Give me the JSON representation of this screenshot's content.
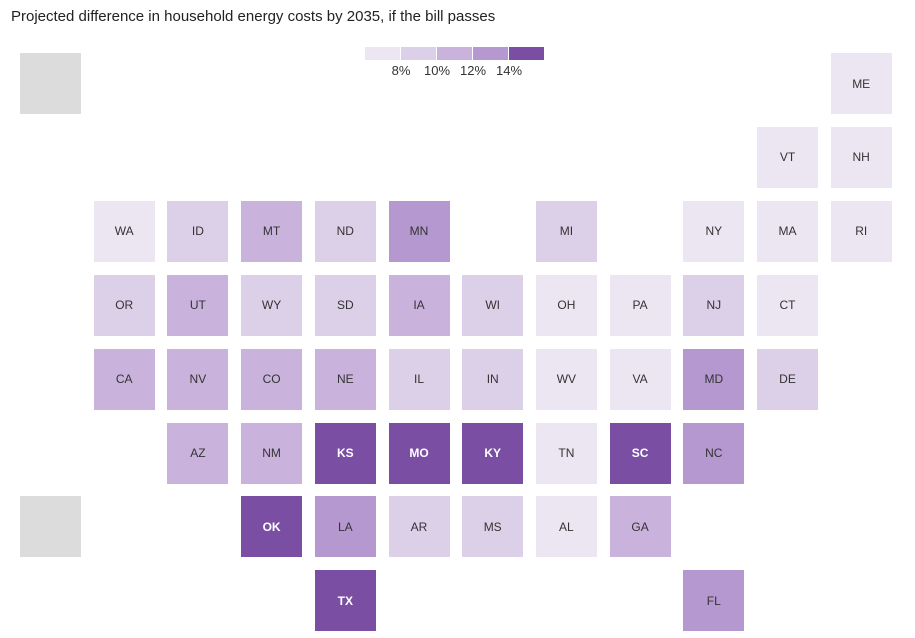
{
  "chart_data": {
    "type": "heatmap",
    "title": "Projected difference in household energy costs by 2035, if the bill passes",
    "legend": {
      "ticks": [
        "8%",
        "10%",
        "12%",
        "14%"
      ],
      "bins": [
        "<8%",
        "8-10%",
        "10-12%",
        "12-14%",
        ">14%"
      ],
      "colors": [
        "#ece6f3",
        "#dccfe8",
        "#c9b3dc",
        "#b698d0",
        "#7a4fa3"
      ]
    },
    "no_data_color": "#dcdcdc",
    "tiles": [
      {
        "state": "",
        "col": 0,
        "row": 0,
        "bin": null
      },
      {
        "state": "ME",
        "col": 11,
        "row": 0,
        "bin": 0
      },
      {
        "state": "VT",
        "col": 10,
        "row": 1,
        "bin": 0
      },
      {
        "state": "NH",
        "col": 11,
        "row": 1,
        "bin": 0
      },
      {
        "state": "WA",
        "col": 1,
        "row": 2,
        "bin": 0
      },
      {
        "state": "ID",
        "col": 2,
        "row": 2,
        "bin": 1
      },
      {
        "state": "MT",
        "col": 3,
        "row": 2,
        "bin": 2
      },
      {
        "state": "ND",
        "col": 4,
        "row": 2,
        "bin": 1
      },
      {
        "state": "MN",
        "col": 5,
        "row": 2,
        "bin": 3
      },
      {
        "state": "MI",
        "col": 7,
        "row": 2,
        "bin": 1
      },
      {
        "state": "NY",
        "col": 9,
        "row": 2,
        "bin": 0
      },
      {
        "state": "MA",
        "col": 10,
        "row": 2,
        "bin": 0
      },
      {
        "state": "RI",
        "col": 11,
        "row": 2,
        "bin": 0
      },
      {
        "state": "OR",
        "col": 1,
        "row": 3,
        "bin": 1
      },
      {
        "state": "UT",
        "col": 2,
        "row": 3,
        "bin": 2
      },
      {
        "state": "WY",
        "col": 3,
        "row": 3,
        "bin": 1
      },
      {
        "state": "SD",
        "col": 4,
        "row": 3,
        "bin": 1
      },
      {
        "state": "IA",
        "col": 5,
        "row": 3,
        "bin": 2
      },
      {
        "state": "WI",
        "col": 6,
        "row": 3,
        "bin": 1
      },
      {
        "state": "OH",
        "col": 7,
        "row": 3,
        "bin": 0
      },
      {
        "state": "PA",
        "col": 8,
        "row": 3,
        "bin": 0
      },
      {
        "state": "NJ",
        "col": 9,
        "row": 3,
        "bin": 1
      },
      {
        "state": "CT",
        "col": 10,
        "row": 3,
        "bin": 0
      },
      {
        "state": "CA",
        "col": 1,
        "row": 4,
        "bin": 2
      },
      {
        "state": "NV",
        "col": 2,
        "row": 4,
        "bin": 2
      },
      {
        "state": "CO",
        "col": 3,
        "row": 4,
        "bin": 2
      },
      {
        "state": "NE",
        "col": 4,
        "row": 4,
        "bin": 2
      },
      {
        "state": "IL",
        "col": 5,
        "row": 4,
        "bin": 1
      },
      {
        "state": "IN",
        "col": 6,
        "row": 4,
        "bin": 1
      },
      {
        "state": "WV",
        "col": 7,
        "row": 4,
        "bin": 0
      },
      {
        "state": "VA",
        "col": 8,
        "row": 4,
        "bin": 0
      },
      {
        "state": "MD",
        "col": 9,
        "row": 4,
        "bin": 3
      },
      {
        "state": "DE",
        "col": 10,
        "row": 4,
        "bin": 1
      },
      {
        "state": "AZ",
        "col": 2,
        "row": 5,
        "bin": 2
      },
      {
        "state": "NM",
        "col": 3,
        "row": 5,
        "bin": 2
      },
      {
        "state": "KS",
        "col": 4,
        "row": 5,
        "bin": 4
      },
      {
        "state": "MO",
        "col": 5,
        "row": 5,
        "bin": 4
      },
      {
        "state": "KY",
        "col": 6,
        "row": 5,
        "bin": 4
      },
      {
        "state": "TN",
        "col": 7,
        "row": 5,
        "bin": 0
      },
      {
        "state": "SC",
        "col": 8,
        "row": 5,
        "bin": 4
      },
      {
        "state": "NC",
        "col": 9,
        "row": 5,
        "bin": 3
      },
      {
        "state": "",
        "col": 0,
        "row": 6,
        "bin": null
      },
      {
        "state": "OK",
        "col": 3,
        "row": 6,
        "bin": 4
      },
      {
        "state": "LA",
        "col": 4,
        "row": 6,
        "bin": 3
      },
      {
        "state": "AR",
        "col": 5,
        "row": 6,
        "bin": 1
      },
      {
        "state": "MS",
        "col": 6,
        "row": 6,
        "bin": 1
      },
      {
        "state": "AL",
        "col": 7,
        "row": 6,
        "bin": 0
      },
      {
        "state": "GA",
        "col": 8,
        "row": 6,
        "bin": 2
      },
      {
        "state": "TX",
        "col": 4,
        "row": 7,
        "bin": 4
      },
      {
        "state": "FL",
        "col": 9,
        "row": 7,
        "bin": 3
      }
    ]
  }
}
